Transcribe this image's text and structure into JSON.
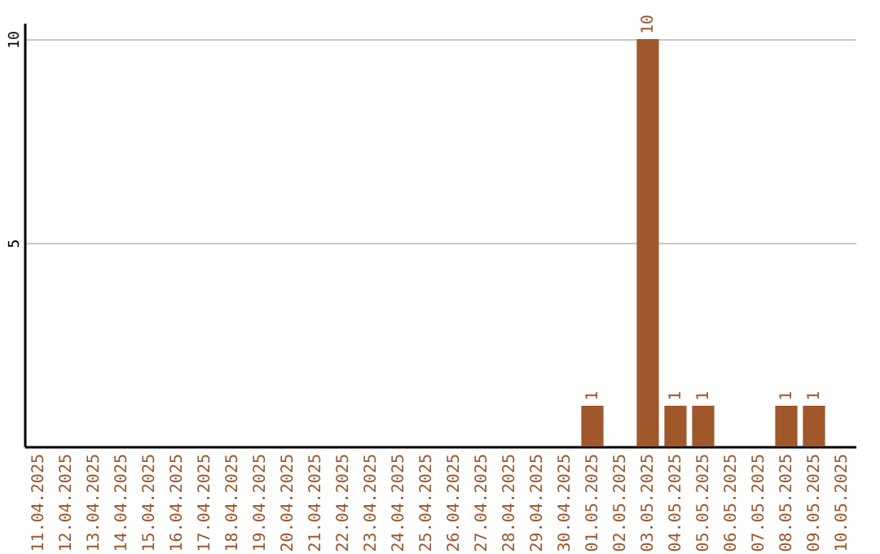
{
  "chart_data": {
    "type": "bar",
    "categories": [
      "11.04.2025",
      "12.04.2025",
      "13.04.2025",
      "14.04.2025",
      "15.04.2025",
      "16.04.2025",
      "17.04.2025",
      "18.04.2025",
      "19.04.2025",
      "20.04.2025",
      "21.04.2025",
      "22.04.2025",
      "23.04.2025",
      "24.04.2025",
      "25.04.2025",
      "26.04.2025",
      "27.04.2025",
      "28.04.2025",
      "29.04.2025",
      "30.04.2025",
      "01.05.2025",
      "02.05.2025",
      "03.05.2025",
      "04.05.2025",
      "05.05.2025",
      "06.05.2025",
      "07.05.2025",
      "08.05.2025",
      "09.05.2025",
      "10.05.2025"
    ],
    "values": [
      0,
      0,
      0,
      0,
      0,
      0,
      0,
      0,
      0,
      0,
      0,
      0,
      0,
      0,
      0,
      0,
      0,
      0,
      0,
      0,
      1,
      0,
      10,
      1,
      1,
      0,
      0,
      1,
      1,
      0
    ],
    "value_labels": [
      null,
      null,
      null,
      null,
      null,
      null,
      null,
      null,
      null,
      null,
      null,
      null,
      null,
      null,
      null,
      null,
      null,
      null,
      null,
      null,
      "1",
      null,
      "10",
      "1",
      "1",
      null,
      null,
      "1",
      "1",
      null
    ],
    "color": "#a0572a",
    "ylim": [
      0,
      10.4
    ],
    "yticks": [
      5,
      10
    ],
    "grid": "y"
  }
}
